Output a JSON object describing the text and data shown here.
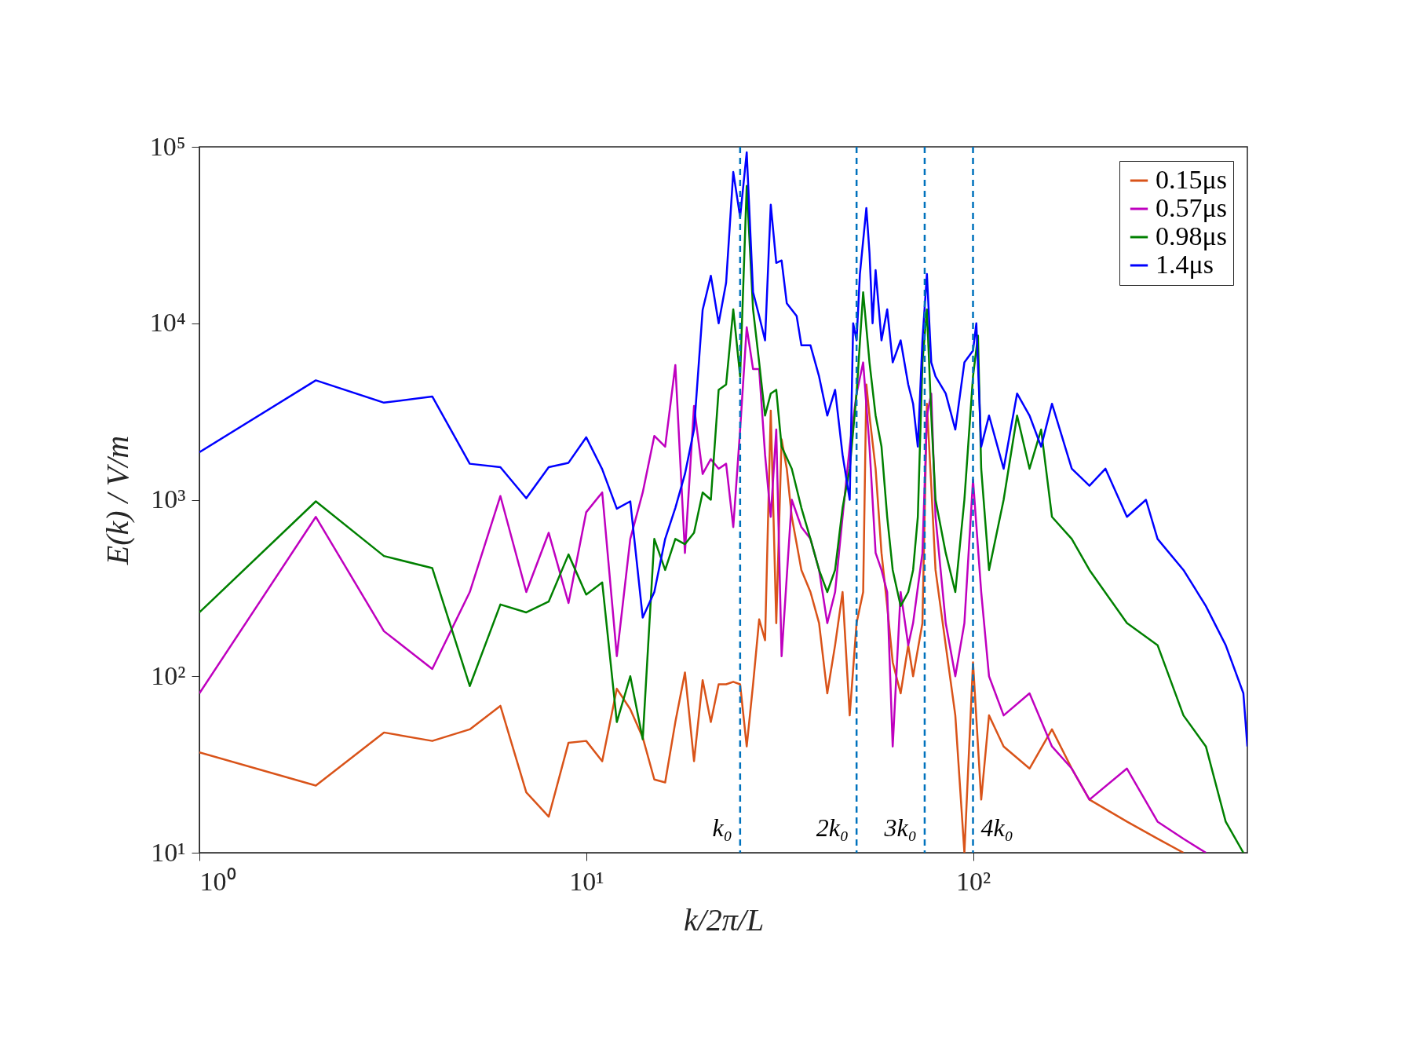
{
  "chart_data": {
    "type": "line",
    "xlabel": "k/2π/L",
    "ylabel": "E(k) / V/m",
    "log": "xy",
    "grid": false,
    "legend": "top right",
    "xlim": [
      1,
      512
    ],
    "ylim": [
      10,
      100000
    ],
    "xticks": [
      {
        "value": 1,
        "label": "10⁰"
      },
      {
        "value": 10,
        "label": "10¹"
      },
      {
        "value": 100,
        "label": "10²"
      }
    ],
    "yticks": [
      {
        "value": 10,
        "label": "10¹"
      },
      {
        "value": 100,
        "label": "10²"
      },
      {
        "value": 1000,
        "label": "10³"
      },
      {
        "value": 10000,
        "label": "10⁴"
      },
      {
        "value": 100000,
        "label": "10⁵"
      }
    ],
    "ref_lines": [
      {
        "axis": "x",
        "value": 25,
        "label": "k₀",
        "color": "#0072bd",
        "line_style": "dashed"
      },
      {
        "axis": "x",
        "value": 50,
        "label": "2k₀",
        "color": "#0072bd",
        "line_style": "dashed"
      },
      {
        "axis": "x",
        "value": 75,
        "label": "3k₀",
        "color": "#0072bd",
        "line_style": "dashed"
      },
      {
        "axis": "x",
        "value": 100,
        "label": "4k₀",
        "color": "#0072bd",
        "line_style": "dashed"
      }
    ],
    "series": [
      {
        "name": "0.15μs",
        "color": "#d95319",
        "x": [
          1,
          2,
          3,
          4,
          5,
          6,
          7,
          8,
          9,
          10,
          11,
          12,
          13,
          14,
          15,
          16,
          17,
          18,
          19,
          20,
          21,
          22,
          23,
          24,
          25,
          26,
          27,
          28,
          29,
          30,
          31,
          32,
          33,
          34,
          36,
          38,
          40,
          42,
          44,
          46,
          48,
          50,
          52,
          53,
          54,
          56,
          58,
          60,
          62,
          65,
          68,
          70,
          74,
          76,
          78,
          80,
          85,
          90,
          95,
          100,
          105,
          110,
          120,
          140,
          160,
          180,
          200,
          250,
          300,
          350
        ],
        "values": [
          37,
          24,
          48,
          43,
          50,
          68,
          22,
          16,
          42,
          43,
          33,
          85,
          65,
          45,
          26,
          25,
          55,
          105,
          33,
          95,
          55,
          90,
          90,
          93,
          90,
          40,
          90,
          210,
          160,
          3200,
          200,
          2200,
          1500,
          800,
          400,
          300,
          200,
          80,
          150,
          300,
          60,
          200,
          300,
          4500,
          3000,
          1500,
          500,
          250,
          120,
          80,
          150,
          100,
          200,
          3500,
          1200,
          400,
          150,
          60,
          10,
          120,
          20,
          60,
          40,
          30,
          50,
          30,
          20,
          15,
          12,
          10
        ]
      },
      {
        "name": "0.57μs",
        "color": "#bf00bf",
        "x": [
          1,
          2,
          3,
          4,
          5,
          6,
          7,
          8,
          9,
          10,
          11,
          12,
          13,
          14,
          15,
          16,
          17,
          18,
          19,
          20,
          21,
          22,
          23,
          24,
          25,
          26,
          27,
          28,
          29,
          30,
          31,
          32,
          34,
          36,
          38,
          40,
          42,
          44,
          46,
          48,
          50,
          52,
          54,
          56,
          58,
          60,
          62,
          65,
          68,
          70,
          74,
          76,
          78,
          80,
          85,
          90,
          95,
          100,
          105,
          110,
          120,
          140,
          160,
          180,
          200,
          250,
          300,
          350,
          400
        ],
        "values": [
          80,
          800,
          180,
          110,
          300,
          1050,
          300,
          650,
          260,
          850,
          1100,
          130,
          600,
          1100,
          2300,
          2000,
          5800,
          500,
          3400,
          1400,
          1700,
          1500,
          1600,
          700,
          2500,
          9500,
          5500,
          5500,
          1800,
          800,
          2500,
          130,
          1000,
          700,
          600,
          400,
          200,
          300,
          800,
          2000,
          4000,
          6000,
          2000,
          500,
          400,
          300,
          40,
          300,
          150,
          200,
          500,
          3000,
          4000,
          800,
          200,
          100,
          200,
          1300,
          300,
          100,
          60,
          80,
          40,
          30,
          20,
          30,
          15,
          12,
          10
        ]
      },
      {
        "name": "0.98μs",
        "color": "#008000",
        "x": [
          1,
          2,
          3,
          4,
          5,
          6,
          7,
          8,
          9,
          10,
          11,
          12,
          13,
          14,
          15,
          16,
          17,
          18,
          19,
          20,
          21,
          22,
          23,
          24,
          25,
          26,
          27,
          28,
          29,
          30,
          31,
          32,
          34,
          36,
          38,
          40,
          42,
          44,
          46,
          48,
          50,
          52,
          54,
          56,
          58,
          60,
          62,
          65,
          68,
          70,
          72,
          74,
          76,
          78,
          80,
          85,
          90,
          95,
          100,
          103,
          105,
          110,
          120,
          130,
          140,
          150,
          160,
          180,
          200,
          250,
          300,
          350,
          400,
          450,
          500
        ],
        "values": [
          230,
          980,
          480,
          410,
          88,
          255,
          230,
          265,
          490,
          290,
          340,
          55,
          100,
          44,
          600,
          400,
          600,
          560,
          650,
          1100,
          1000,
          4200,
          4500,
          12000,
          5000,
          60000,
          12000,
          6000,
          3000,
          4000,
          4200,
          2000,
          1500,
          900,
          600,
          400,
          300,
          400,
          900,
          1500,
          4000,
          15000,
          6000,
          3000,
          2000,
          800,
          400,
          250,
          300,
          400,
          800,
          6000,
          12000,
          3000,
          1000,
          500,
          300,
          1000,
          5000,
          8500,
          1500,
          400,
          1000,
          3000,
          1500,
          2500,
          800,
          600,
          400,
          200,
          150,
          60,
          40,
          15,
          10
        ]
      },
      {
        "name": "1.4μs",
        "color": "#0000ff",
        "x": [
          1,
          2,
          3,
          4,
          5,
          6,
          7,
          8,
          9,
          10,
          11,
          12,
          13,
          14,
          15,
          16,
          17,
          18,
          19,
          20,
          21,
          22,
          23,
          24,
          25,
          26,
          27,
          28,
          29,
          30,
          31,
          32,
          33,
          35,
          36,
          38,
          40,
          42,
          44,
          46,
          48,
          49,
          50,
          51,
          53,
          54,
          55,
          56,
          58,
          60,
          62,
          65,
          68,
          70,
          72,
          74,
          76,
          78,
          80,
          85,
          90,
          95,
          100,
          102,
          105,
          110,
          120,
          130,
          140,
          150,
          160,
          180,
          200,
          220,
          250,
          280,
          300,
          350,
          400,
          450,
          500,
          512
        ],
        "values": [
          1860,
          4750,
          3550,
          3850,
          1600,
          1530,
          1020,
          1530,
          1620,
          2260,
          1490,
          890,
          980,
          215,
          300,
          600,
          900,
          1400,
          2500,
          11900,
          18600,
          10000,
          17000,
          72000,
          40000,
          93000,
          15000,
          11000,
          8000,
          47000,
          22000,
          22700,
          13000,
          11000,
          7500,
          7500,
          5000,
          3000,
          4200,
          1800,
          1000,
          10000,
          8000,
          19000,
          45000,
          25000,
          10000,
          20000,
          8000,
          12000,
          6000,
          8000,
          4500,
          3500,
          2000,
          8000,
          19000,
          6000,
          5000,
          4000,
          2500,
          6000,
          7000,
          10000,
          2000,
          3000,
          1500,
          4000,
          3000,
          2000,
          3500,
          1500,
          1200,
          1500,
          800,
          1000,
          600,
          400,
          250,
          150,
          80,
          40
        ]
      }
    ]
  }
}
